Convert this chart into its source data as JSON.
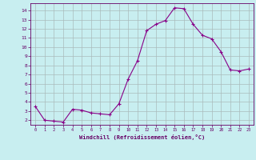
{
  "x": [
    0,
    1,
    2,
    3,
    4,
    5,
    6,
    7,
    8,
    9,
    10,
    11,
    12,
    13,
    14,
    15,
    16,
    17,
    18,
    19,
    20,
    21,
    22,
    23
  ],
  "y": [
    3.5,
    2.0,
    1.9,
    1.8,
    3.2,
    3.1,
    2.8,
    2.7,
    2.6,
    3.8,
    6.5,
    8.5,
    11.8,
    12.5,
    12.9,
    14.3,
    14.2,
    12.5,
    11.3,
    10.9,
    9.5,
    7.5,
    7.4,
    7.6
  ],
  "line_color": "#880088",
  "marker": "+",
  "background_color": "#c8eef0",
  "grid_color": "#aabbbb",
  "ylabel_ticks": [
    2,
    3,
    4,
    5,
    6,
    7,
    8,
    9,
    10,
    11,
    12,
    13,
    14
  ],
  "xlabel": "Windchill (Refroidissement éolien,°C)",
  "ylim": [
    1.5,
    14.8
  ],
  "xlim": [
    -0.5,
    23.5
  ],
  "axis_color": "#660066",
  "tick_color": "#660066",
  "font_color": "#660066"
}
